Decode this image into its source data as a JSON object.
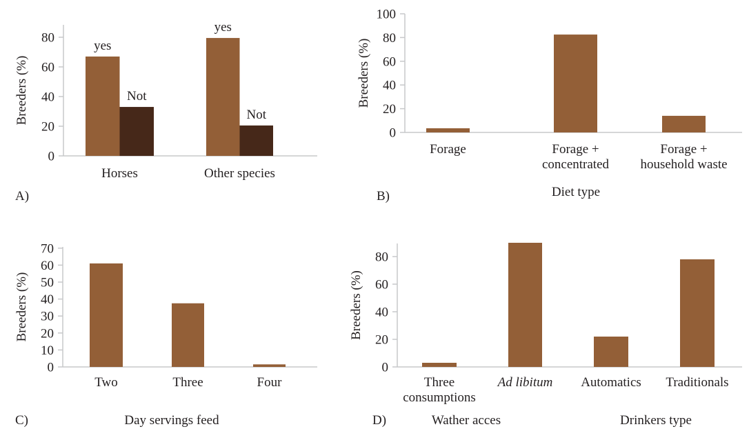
{
  "chart_data": [
    {
      "panel": "A)",
      "type": "bar",
      "title": "",
      "xlabel": "",
      "ylabel": "Breeders (%)",
      "ylim": [
        0,
        90
      ],
      "yticks": [
        "0",
        "20",
        "40",
        "60",
        "80"
      ],
      "categories": [
        "Horses",
        "Other species"
      ],
      "series": [
        {
          "name": "yes",
          "color": "#935f37",
          "values": [
            67,
            79.5
          ]
        },
        {
          "name": "Not",
          "color": "#462819",
          "values": [
            33,
            20.5
          ]
        }
      ],
      "grid": false,
      "legend": "none"
    },
    {
      "panel": "B)",
      "type": "bar",
      "title": "",
      "xlabel": "Diet type",
      "ylabel": "Breeders (%)",
      "ylim": [
        0,
        100
      ],
      "yticks": [
        "0",
        "20",
        "40",
        "60",
        "80",
        "100"
      ],
      "categories": [
        [
          "Forage"
        ],
        [
          "Forage +",
          "concentrated"
        ],
        [
          "Forage +",
          "household waste"
        ]
      ],
      "values": [
        3.5,
        82.5,
        14
      ],
      "color": "#935f37",
      "grid": false
    },
    {
      "panel": "C)",
      "type": "bar",
      "title": "",
      "xlabel": "Day servings feed",
      "ylabel": "Breeders (%)",
      "ylim": [
        0,
        70
      ],
      "yticks": [
        "0",
        "10",
        "20",
        "30",
        "40",
        "50",
        "60",
        "70"
      ],
      "categories": [
        [
          "Two"
        ],
        [
          "Three"
        ],
        [
          "Four"
        ]
      ],
      "values": [
        61,
        37.5,
        1.5
      ],
      "color": "#935f37",
      "grid": false
    },
    {
      "panel": "D)",
      "type": "bar",
      "title": "",
      "xlabel": "",
      "group_labels": [
        "Wather acces",
        "Drinkers type"
      ],
      "ylabel": "Breeders (%)",
      "ylim": [
        0,
        90
      ],
      "yticks": [
        "0",
        "20",
        "40",
        "60",
        "80"
      ],
      "categories": [
        [
          "Three",
          "consumptions"
        ],
        [
          "Ad libitum"
        ],
        [
          "Automatics"
        ],
        [
          "Traditionals"
        ]
      ],
      "italic_categories": [
        1
      ],
      "values": [
        3,
        90,
        22,
        78
      ],
      "color": "#935f37",
      "grid": false
    }
  ]
}
